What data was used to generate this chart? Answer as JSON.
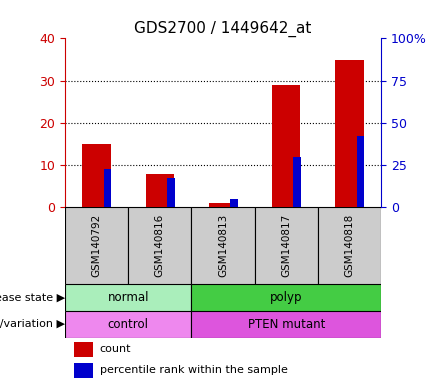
{
  "title": "GDS2700 / 1449642_at",
  "samples": [
    "GSM140792",
    "GSM140816",
    "GSM140813",
    "GSM140817",
    "GSM140818"
  ],
  "count_values": [
    15,
    8,
    1,
    29,
    35
  ],
  "percentile_values": [
    9,
    7,
    2,
    12,
    17
  ],
  "left_ylim": [
    0,
    40
  ],
  "left_yticks": [
    0,
    10,
    20,
    30,
    40
  ],
  "right_ylim": [
    0,
    100
  ],
  "right_yticks": [
    0,
    25,
    50,
    75,
    100
  ],
  "right_yticklabels": [
    "0",
    "25",
    "50",
    "75",
    "100%"
  ],
  "count_color": "#cc0000",
  "percentile_color": "#0000cc",
  "red_bar_width": 0.45,
  "blue_bar_width": 0.12,
  "disease_state": [
    {
      "label": "normal",
      "start": 0,
      "end": 2,
      "color": "#aaeebb"
    },
    {
      "label": "polyp",
      "start": 2,
      "end": 5,
      "color": "#44cc44"
    }
  ],
  "genotype": [
    {
      "label": "control",
      "start": 0,
      "end": 2,
      "color": "#ee88ee"
    },
    {
      "label": "PTEN mutant",
      "start": 2,
      "end": 5,
      "color": "#dd55dd"
    }
  ],
  "disease_state_label": "disease state",
  "genotype_label": "genotype/variation",
  "legend_count": "count",
  "legend_percentile": "percentile rank within the sample",
  "background_color": "#ffffff",
  "left_axis_color": "#cc0000",
  "right_axis_color": "#0000cc",
  "sample_bg_color": "#cccccc"
}
